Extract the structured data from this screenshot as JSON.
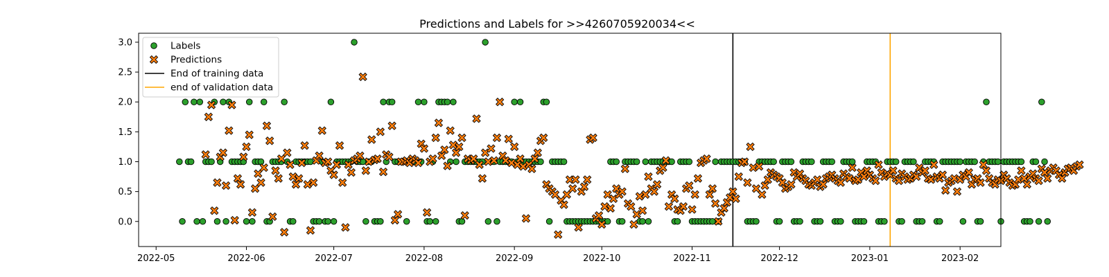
{
  "chart_data": {
    "type": "scatter",
    "title": "Predictions and Labels for >>4260705920034<<",
    "xlabel": "",
    "ylabel": "",
    "x_start": "2022-04-25",
    "x_end": "2023-02-15",
    "ylim": [
      -0.42,
      3.15
    ],
    "grid": false,
    "legend_position": "top-left",
    "x_ticks": [
      {
        "date": "2022-05-01",
        "label": "2022-05"
      },
      {
        "date": "2022-06-01",
        "label": "2022-06"
      },
      {
        "date": "2022-07-01",
        "label": "2022-07"
      },
      {
        "date": "2022-08-01",
        "label": "2022-08"
      },
      {
        "date": "2022-09-01",
        "label": "2022-09"
      },
      {
        "date": "2022-10-01",
        "label": "2022-10"
      },
      {
        "date": "2022-11-01",
        "label": "2022-11"
      },
      {
        "date": "2022-12-01",
        "label": "2022-12"
      },
      {
        "date": "2023-01-01",
        "label": "2023-01"
      },
      {
        "date": "2023-02-01",
        "label": "2023-02"
      }
    ],
    "y_ticks": [
      {
        "value": 0.0,
        "label": "0.0"
      },
      {
        "value": 0.5,
        "label": "0.5"
      },
      {
        "value": 1.0,
        "label": "1.0"
      },
      {
        "value": 1.5,
        "label": "1.5"
      },
      {
        "value": 2.0,
        "label": "2.0"
      },
      {
        "value": 2.5,
        "label": "2.5"
      },
      {
        "value": 3.0,
        "label": "3.0"
      }
    ],
    "vlines": [
      {
        "name": "End of training data",
        "date": "2022-11-15",
        "color": "#000000"
      },
      {
        "name": "end of validation data",
        "date": "2023-01-08",
        "color": "#ffa500"
      }
    ],
    "series": [
      {
        "name": "Labels",
        "marker": "circle",
        "color": "#2ca02c",
        "start_date": "2022-05-09",
        "values": [
          1,
          0,
          2,
          1,
          1,
          2,
          0,
          2,
          0,
          1,
          1,
          1,
          2,
          0,
          1,
          2,
          0,
          2,
          1,
          1,
          1,
          1,
          1,
          0,
          2,
          0,
          1,
          1,
          1,
          2,
          0,
          0,
          1,
          1,
          1,
          1,
          2,
          1,
          0,
          0,
          1,
          1,
          1,
          1,
          1,
          1,
          0,
          0,
          0,
          1,
          0,
          0,
          2,
          0,
          1,
          1,
          1,
          1,
          1,
          1,
          3,
          1,
          1,
          1,
          0,
          1,
          1,
          0,
          0,
          0,
          2,
          1,
          2,
          2,
          1,
          1,
          1,
          1,
          0,
          1,
          1,
          1,
          2,
          1,
          2,
          0,
          0,
          1,
          0,
          2,
          2,
          2,
          2,
          1,
          2,
          1,
          0,
          0,
          1,
          1,
          1,
          1,
          1,
          1,
          1,
          3,
          0,
          1,
          1,
          0,
          1,
          1,
          1,
          1,
          1,
          2,
          1,
          2,
          1,
          1,
          1,
          1,
          1,
          1,
          1,
          2,
          2,
          0,
          1,
          1,
          1,
          1,
          1,
          0,
          0,
          0,
          0,
          0,
          0,
          0,
          0,
          0,
          0,
          0,
          0,
          0,
          0,
          0,
          1,
          1,
          1,
          0,
          0,
          1,
          1,
          1,
          1,
          1,
          0,
          0,
          1,
          0,
          1,
          1,
          1,
          1,
          1,
          1,
          1,
          1,
          0,
          0,
          1,
          1,
          1,
          1,
          0,
          0,
          0,
          0,
          0,
          0,
          0,
          0,
          1,
          0,
          1,
          1,
          1,
          1,
          1,
          1,
          1,
          1,
          1,
          0,
          0,
          0,
          0,
          1,
          1,
          1,
          1,
          1,
          1,
          0,
          0,
          1,
          1,
          1,
          1,
          0,
          0,
          0,
          1,
          1,
          1,
          1,
          0,
          0,
          0,
          1,
          1,
          1,
          1,
          0,
          0,
          0,
          1,
          1,
          1,
          1,
          0,
          0,
          0,
          0,
          1,
          1,
          1,
          1,
          0,
          0,
          0,
          1,
          1,
          1,
          1,
          0,
          0,
          1,
          1,
          1,
          1,
          0,
          0,
          0,
          1,
          1,
          1,
          1,
          0,
          0,
          1,
          1,
          1,
          1,
          1,
          1,
          1,
          0,
          1,
          1,
          1,
          1,
          0,
          0,
          1,
          2,
          1,
          1,
          1,
          1,
          0,
          1,
          1,
          1,
          1,
          1,
          1,
          1,
          0,
          0,
          0,
          1,
          1,
          0,
          2,
          1,
          0
        ]
      },
      {
        "name": "Predictions",
        "marker": "x",
        "color": "#ff7f0e",
        "start_date": "2022-05-18",
        "values": [
          1.12,
          1.75,
          1.95,
          0.18,
          0.65,
          1.08,
          1.15,
          0.6,
          1.52,
          1.95,
          0.02,
          0.72,
          0.62,
          1.08,
          1.25,
          1.45,
          0.15,
          0.55,
          0.8,
          0.65,
          0.9,
          1.6,
          1.35,
          0.08,
          0.85,
          0.72,
          1.05,
          -0.18,
          1.15,
          0.95,
          0.75,
          0.62,
          0.72,
          0.98,
          1.27,
          0.62,
          -0.15,
          0.65,
          1.02,
          1.1,
          1.52,
          0.98,
          1.0,
          0.85,
          0.78,
          0.95,
          1.27,
          0.65,
          -0.1,
          0.95,
          0.82,
          1.02,
          1.05,
          1.1,
          2.42,
          0.85,
          1.0,
          1.37,
          1.03,
          1.05,
          1.5,
          0.83,
          1.12,
          1.08,
          1.6,
          0.02,
          0.12,
          1.0,
          1.0,
          1.02,
          0.98,
          1.05,
          1.02,
          0.98,
          1.3,
          1.22,
          0.15,
          1.0,
          1.05,
          1.4,
          1.65,
          1.1,
          1.2,
          0.93,
          1.52,
          1.28,
          1.15,
          1.25,
          1.4,
          0.1,
          1.05,
          1.02,
          1.05,
          1.72,
          0.95,
          0.72,
          1.15,
          1.0,
          1.22,
          1.02,
          1.4,
          2.0,
          1.1,
          1.02,
          1.38,
          0.98,
          1.25,
          0.95,
          1.05,
          0.92,
          0.05,
          0.95,
          0.88,
          1.05,
          1.15,
          1.35,
          1.4,
          0.62,
          0.55,
          0.5,
          0.45,
          -0.22,
          0.35,
          0.28,
          0.45,
          0.7,
          0.55,
          0.7,
          -0.1,
          0.5,
          0.58,
          0.7,
          1.37,
          1.4,
          0.05,
          0.1,
          -0.05,
          0.25,
          0.45,
          0.22,
          0.38,
          0.55,
          0.45,
          0.5,
          0.88,
          0.3,
          0.25,
          -0.05,
          0.12,
          0.42,
          0.18,
          0.45,
          0.75,
          0.55,
          0.5,
          0.62,
          0.85,
          0.9,
          1.02,
          0.25,
          0.45,
          0.38,
          0.2,
          0.18,
          0.25,
          0.55,
          0.6,
          0.2,
          0.45,
          0.72,
          0.98,
          1.02,
          1.05,
          0.45,
          0.55,
          0.3,
          0.0,
          0.15,
          0.22,
          0.32,
          0.4,
          0.5,
          0.38,
          0.75,
          0.98,
          1.0,
          0.65,
          1.25,
          0.9,
          0.55,
          0.92,
          0.45,
          0.6,
          0.7,
          0.82,
          0.78,
          0.75,
          0.72,
          0.65,
          0.55,
          0.58,
          0.62,
          0.82,
          0.75,
          0.8,
          0.72,
          0.68,
          0.62,
          0.6,
          0.65,
          0.7,
          0.58,
          0.62,
          0.72,
          0.75,
          0.78,
          0.72,
          0.68,
          0.65,
          0.8,
          0.75,
          0.72,
          0.9,
          0.68,
          0.7,
          0.82,
          0.75,
          0.85,
          0.78,
          0.72,
          0.68,
          0.95,
          0.82,
          0.75,
          0.8,
          0.78,
          0.85,
          0.72,
          0.68,
          0.8,
          0.75,
          0.7,
          0.72,
          0.78,
          0.75,
          0.9,
          0.82,
          0.85,
          0.72,
          0.7,
          0.95,
          0.75,
          0.72,
          0.78,
          0.52,
          0.65,
          0.68,
          0.72,
          0.5,
          0.7,
          0.78,
          0.75,
          0.82,
          0.62,
          0.7,
          0.72,
          0.65,
          0.95,
          0.85,
          0.72,
          0.65,
          0.62,
          0.7,
          0.68,
          0.78,
          0.72,
          0.65,
          0.6,
          0.62,
          0.7,
          0.85,
          0.72,
          0.62,
          0.75,
          0.8,
          0.72,
          0.68,
          0.88,
          0.82,
          0.72,
          0.85,
          0.9,
          0.85,
          0.78,
          0.72,
          0.82,
          0.88,
          0.9,
          0.85,
          0.92,
          0.95
        ]
      }
    ]
  }
}
